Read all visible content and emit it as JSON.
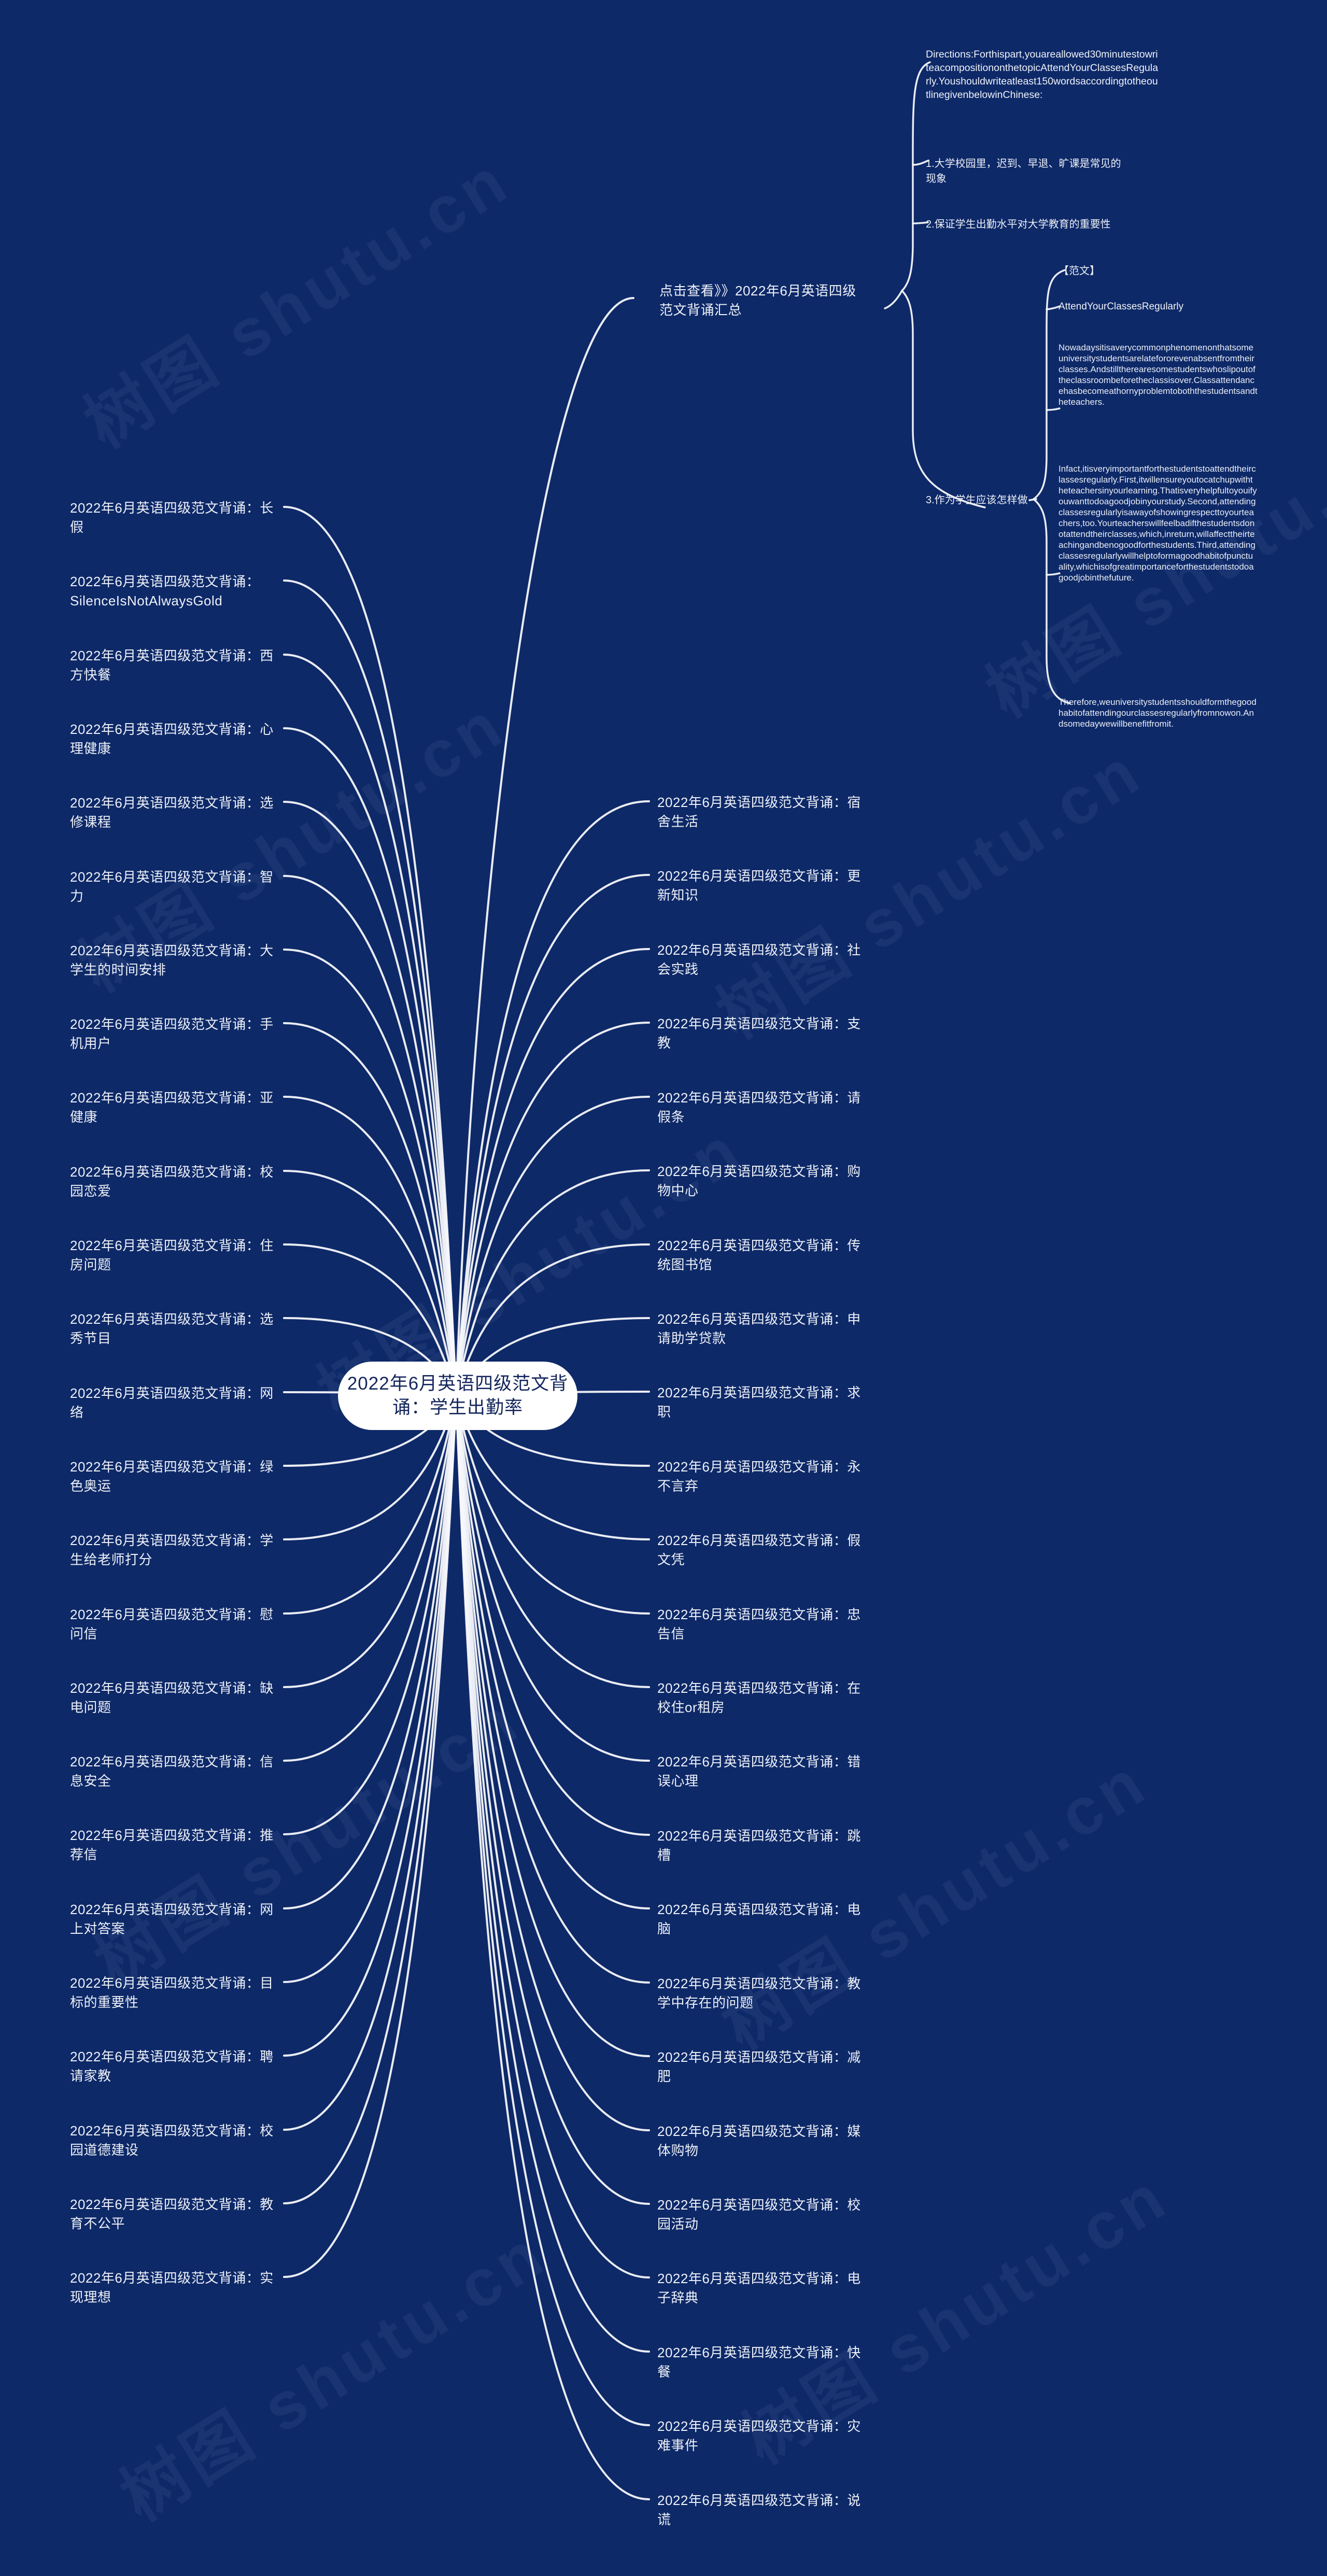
{
  "page": {
    "background_color": "#0e2968",
    "line_color": "#f5f7fb",
    "watermark_text": "树图 shutu.cn"
  },
  "center": {
    "label": "2022年6月英语四级范文背诵：学生出勤率"
  },
  "summary_link": {
    "label": "点击查看》》2022年6月英语四级范文背诵汇总"
  },
  "left_items": [
    {
      "label": "2022年6月英语四级范文背诵：长假"
    },
    {
      "label": "2022年6月英语四级范文背诵：SilenceIsNotAlwaysGold"
    },
    {
      "label": "2022年6月英语四级范文背诵：西方快餐"
    },
    {
      "label": "2022年6月英语四级范文背诵：心理健康"
    },
    {
      "label": "2022年6月英语四级范文背诵：选修课程"
    },
    {
      "label": "2022年6月英语四级范文背诵：智力"
    },
    {
      "label": "2022年6月英语四级范文背诵：大学生的时间安排"
    },
    {
      "label": "2022年6月英语四级范文背诵：手机用户"
    },
    {
      "label": "2022年6月英语四级范文背诵：亚健康"
    },
    {
      "label": "2022年6月英语四级范文背诵：校园恋爱"
    },
    {
      "label": "2022年6月英语四级范文背诵：住房问题"
    },
    {
      "label": "2022年6月英语四级范文背诵：选秀节目"
    },
    {
      "label": "2022年6月英语四级范文背诵：网络"
    },
    {
      "label": "2022年6月英语四级范文背诵：绿色奥运"
    },
    {
      "label": "2022年6月英语四级范文背诵：学生给老师打分"
    },
    {
      "label": "2022年6月英语四级范文背诵：慰问信"
    },
    {
      "label": "2022年6月英语四级范文背诵：缺电问题"
    },
    {
      "label": "2022年6月英语四级范文背诵：信息安全"
    },
    {
      "label": "2022年6月英语四级范文背诵：推荐信"
    },
    {
      "label": "2022年6月英语四级范文背诵：网上对答案"
    },
    {
      "label": "2022年6月英语四级范文背诵：目标的重要性"
    },
    {
      "label": "2022年6月英语四级范文背诵：聘请家教"
    },
    {
      "label": "2022年6月英语四级范文背诵：校园道德建设"
    },
    {
      "label": "2022年6月英语四级范文背诵：教育不公平"
    },
    {
      "label": "2022年6月英语四级范文背诵：实现理想"
    }
  ],
  "right_items": [
    {
      "label": "2022年6月英语四级范文背诵：宿舍生活"
    },
    {
      "label": "2022年6月英语四级范文背诵：更新知识"
    },
    {
      "label": "2022年6月英语四级范文背诵：社会实践"
    },
    {
      "label": "2022年6月英语四级范文背诵：支教"
    },
    {
      "label": "2022年6月英语四级范文背诵：请假条"
    },
    {
      "label": "2022年6月英语四级范文背诵：购物中心"
    },
    {
      "label": "2022年6月英语四级范文背诵：传统图书馆"
    },
    {
      "label": "2022年6月英语四级范文背诵：申请助学贷款"
    },
    {
      "label": "2022年6月英语四级范文背诵：求职"
    },
    {
      "label": "2022年6月英语四级范文背诵：永不言弃"
    },
    {
      "label": "2022年6月英语四级范文背诵：假文凭"
    },
    {
      "label": "2022年6月英语四级范文背诵：忠告信"
    },
    {
      "label": "2022年6月英语四级范文背诵：在校住or租房"
    },
    {
      "label": "2022年6月英语四级范文背诵：错误心理"
    },
    {
      "label": "2022年6月英语四级范文背诵：跳槽"
    },
    {
      "label": "2022年6月英语四级范文背诵：电脑"
    },
    {
      "label": "2022年6月英语四级范文背诵：教学中存在的问题"
    },
    {
      "label": "2022年6月英语四级范文背诵：减肥"
    },
    {
      "label": "2022年6月英语四级范文背诵：媒体购物"
    },
    {
      "label": "2022年6月英语四级范文背诵：校园活动"
    },
    {
      "label": "2022年6月英语四级范文背诵：电子辞典"
    },
    {
      "label": "2022年6月英语四级范文背诵：快餐"
    },
    {
      "label": "2022年6月英语四级范文背诵：灾难事件"
    },
    {
      "label": "2022年6月英语四级范文背诵：说谎"
    }
  ],
  "outline": {
    "directions": "Directions:Forthispart,youareallowed30minutestowriteacompositiononthetopicAttendYourClassesRegularly.Youshouldwriteatleast150wordsaccordingtotheoutlinegivenbelowinChinese:",
    "points": [
      "1.大学校园里，迟到、早退、旷课是常见的现象",
      "2.保证学生出勤水平对大学教育的重要性",
      "3.作为学生应该怎样做"
    ]
  },
  "essay": {
    "tag": "【范文】",
    "title": "AttendYourClassesRegularly",
    "paragraphs": [
      "Nowadaysitisaverycommonphenomenonthatsomeuniversitystudentsarelatefororevenabsentfromtheirclasses.Andstilltherearesomestudentswhoslipoutoftheclassroombeforetheclassisover.Classattendancehasbecomeathornyproblemtoboththestudentsandtheteachers.",
      "Infact,itisveryimportantforthestudentstoattendtheirclassesregularly.First,itwillensureyoutocatchupwiththeteachersinyourlearning.Thatisveryhelpfultoyouifyouwanttodoagoodjobinyourstudy.Second,attendingclassesregularlyisawayofshowingrespecttoyourteachers,too.Yourteacherswillfeelbadifthestudentsdonotattendtheirclasses,which,inreturn,willaffecttheirteachingandbenogoodforthestudents.Third,attendingclassesregularlywillhelptoformagoodhabitofpunctuality,whichisofgreatimportanceforthestudentstodoagoodjobinthefuture.",
      "Therefore,weuniversitystudentsshouldformthegoodhabitofattendingourclassesregularlyfromnowon.Andsomedaywewillbenefitfromit."
    ]
  }
}
